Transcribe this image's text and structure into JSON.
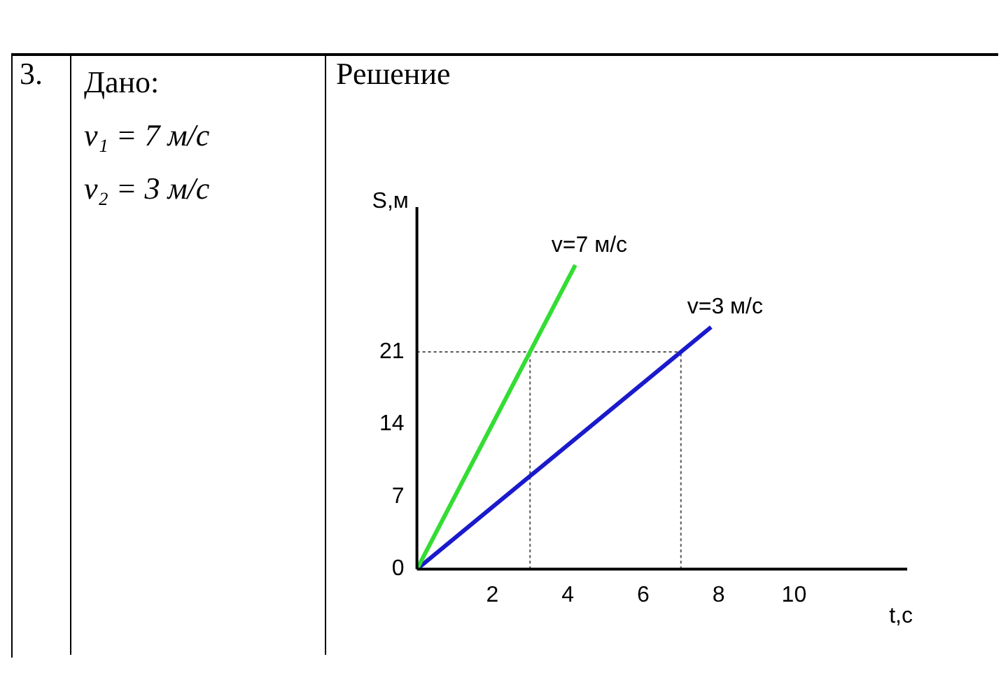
{
  "chart_data": {
    "type": "line",
    "xlabel": "t,c",
    "ylabel": "S,м",
    "annotations": [
      "3.",
      "Дано:",
      "v₁ = 7 м/с",
      "v₂ = 3 м/с",
      "Решение"
    ],
    "series": [
      {
        "name": "v=7 м/с",
        "color": "#33dd33",
        "x": [
          0,
          4.2
        ],
        "values": [
          0,
          29.4
        ]
      },
      {
        "name": "v=3 м/с",
        "color": "#1a1acc",
        "x": [
          0,
          7.8
        ],
        "values": [
          0,
          23.4
        ]
      }
    ],
    "xlim": [
      0,
      13
    ],
    "xticks": [
      2,
      4,
      6,
      8,
      10
    ],
    "ylim": [
      0,
      35
    ],
    "yticks": [
      0,
      7,
      14,
      21
    ],
    "ref_lines": [
      {
        "axis": "y",
        "value": 21,
        "line_style": "dotted",
        "color": "#555555"
      },
      {
        "axis": "x",
        "value": 3,
        "line_style": "dotted",
        "color": "#555555"
      },
      {
        "axis": "x",
        "value": 7,
        "line_style": "dotted",
        "color": "#555555"
      }
    ],
    "grid": false,
    "legend": false,
    "marker": "none",
    "line_style": "solid"
  }
}
